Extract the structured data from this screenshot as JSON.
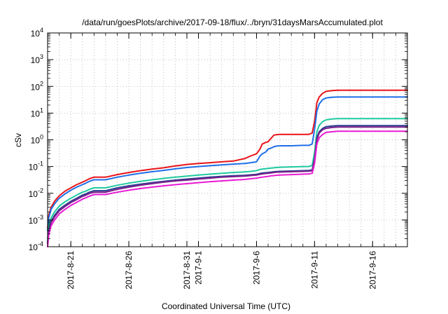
{
  "chart_data": {
    "type": "line",
    "title": "/data/run/goesPlots/archive/2017-09-18/flux/../bryn/31daysMarsAccumulated.plot",
    "xlabel": "Coordinated Universal Time (UTC)",
    "ylabel": "cSv",
    "yscale": "log",
    "ylim": [
      0.0001,
      10000
    ],
    "xlim": [
      0,
      31
    ],
    "grid": true,
    "x_ticks": [
      {
        "x": 2,
        "label": "2017-8-21"
      },
      {
        "x": 7,
        "label": "2017-8-26"
      },
      {
        "x": 12,
        "label": "2017-8-31"
      },
      {
        "x": 13,
        "label": "2017-9-1"
      },
      {
        "x": 18,
        "label": "2017-9-6"
      },
      {
        "x": 23,
        "label": "2017-9-11"
      },
      {
        "x": 28,
        "label": "2017-9-16"
      }
    ],
    "y_ticks": [
      {
        "base": "10",
        "exp": "4",
        "value": 10000
      },
      {
        "base": "10",
        "exp": "3",
        "value": 1000
      },
      {
        "base": "10",
        "exp": "2",
        "value": 100
      },
      {
        "base": "10",
        "exp": "1",
        "value": 10
      },
      {
        "base": "10",
        "exp": "0",
        "value": 1
      },
      {
        "base": "10",
        "exp": "-1",
        "value": 0.1
      },
      {
        "base": "10",
        "exp": "-2",
        "value": 0.01
      },
      {
        "base": "10",
        "exp": "-3",
        "value": 0.001
      },
      {
        "base": "10",
        "exp": "-4",
        "value": 0.0001
      }
    ],
    "series": [
      {
        "color": "#e8141a",
        "x": [
          0,
          0.1,
          0.3,
          0.6,
          1.0,
          1.5,
          2.0,
          2.5,
          3.0,
          3.3,
          3.6,
          4.0,
          4.5,
          5.0,
          6.0,
          7.0,
          8.0,
          9.0,
          10.0,
          11.0,
          12.0,
          13.0,
          14.0,
          15.0,
          16.0,
          17.0,
          17.5,
          18.0,
          18.3,
          18.5,
          18.8,
          19.0,
          19.3,
          19.5,
          19.7,
          20.0,
          21.0,
          22.0,
          22.5,
          22.8,
          23.0,
          23.2,
          23.4,
          23.7,
          24.0,
          24.5,
          25.0,
          26.0,
          27.0,
          28.0,
          29.0,
          30.0,
          31.0
        ],
        "y": [
          0.0005,
          0.0015,
          0.003,
          0.005,
          0.008,
          0.012,
          0.016,
          0.021,
          0.026,
          0.03,
          0.035,
          0.04,
          0.04,
          0.04,
          0.05,
          0.06,
          0.07,
          0.08,
          0.09,
          0.105,
          0.12,
          0.13,
          0.14,
          0.15,
          0.16,
          0.2,
          0.25,
          0.3,
          0.45,
          0.7,
          0.8,
          0.85,
          1.2,
          1.5,
          1.55,
          1.6,
          1.6,
          1.6,
          1.6,
          1.8,
          5,
          25,
          40,
          55,
          65,
          70,
          72,
          72,
          72,
          72,
          72,
          72,
          72
        ]
      },
      {
        "color": "#1f6fe8",
        "x": [
          0,
          0.1,
          0.3,
          0.6,
          1.0,
          1.5,
          2.0,
          2.5,
          3.0,
          3.3,
          3.6,
          4.0,
          4.5,
          5.0,
          6.0,
          7.0,
          8.0,
          9.0,
          10.0,
          11.0,
          12.0,
          13.0,
          14.0,
          15.0,
          16.0,
          17.0,
          17.5,
          18.0,
          18.3,
          18.5,
          18.8,
          19.0,
          19.3,
          19.5,
          19.7,
          20.0,
          21.0,
          22.0,
          22.5,
          22.8,
          23.0,
          23.2,
          23.4,
          23.7,
          24.0,
          24.5,
          25.0,
          26.0,
          27.0,
          28.0,
          29.0,
          30.0,
          31.0
        ],
        "y": [
          0.0004,
          0.0012,
          0.0025,
          0.004,
          0.0065,
          0.0095,
          0.013,
          0.017,
          0.021,
          0.024,
          0.028,
          0.032,
          0.032,
          0.032,
          0.04,
          0.048,
          0.056,
          0.064,
          0.072,
          0.082,
          0.092,
          0.1,
          0.108,
          0.116,
          0.124,
          0.13,
          0.14,
          0.15,
          0.25,
          0.3,
          0.35,
          0.45,
          0.5,
          0.55,
          0.58,
          0.6,
          0.6,
          0.62,
          0.62,
          0.7,
          2.5,
          12,
          22,
          32,
          37,
          39,
          40,
          40,
          40,
          40,
          40,
          40,
          40
        ]
      },
      {
        "color": "#1fc9a0",
        "x": [
          0,
          0.1,
          0.3,
          0.6,
          1.0,
          1.5,
          2.0,
          2.5,
          3.0,
          3.3,
          3.6,
          4.0,
          4.5,
          5.0,
          6.0,
          7.0,
          8.0,
          9.0,
          10.0,
          11.0,
          12.0,
          13.0,
          14.0,
          15.0,
          16.0,
          17.0,
          17.5,
          18.0,
          18.3,
          18.5,
          18.8,
          19.0,
          19.3,
          19.5,
          19.7,
          20.0,
          21.0,
          22.0,
          22.5,
          22.8,
          23.0,
          23.2,
          23.4,
          23.7,
          24.0,
          24.5,
          25.0,
          26.0,
          27.0,
          28.0,
          29.0,
          30.0,
          31.0
        ],
        "y": [
          0.0002,
          0.0006,
          0.0012,
          0.002,
          0.0033,
          0.0048,
          0.0065,
          0.0085,
          0.011,
          0.012,
          0.014,
          0.016,
          0.016,
          0.016,
          0.02,
          0.024,
          0.028,
          0.032,
          0.036,
          0.04,
          0.044,
          0.048,
          0.052,
          0.056,
          0.06,
          0.063,
          0.066,
          0.07,
          0.078,
          0.08,
          0.083,
          0.085,
          0.088,
          0.09,
          0.092,
          0.094,
          0.097,
          0.1,
          0.1,
          0.11,
          0.35,
          2,
          3.5,
          4.8,
          5.6,
          6.0,
          6.2,
          6.2,
          6.2,
          6.2,
          6.2,
          6.2,
          6.2
        ]
      },
      {
        "color": "#2a3f8f",
        "x": [
          0,
          0.1,
          0.3,
          0.6,
          1.0,
          1.5,
          2.0,
          2.5,
          3.0,
          3.3,
          3.6,
          4.0,
          4.5,
          5.0,
          6.0,
          7.0,
          8.0,
          9.0,
          10.0,
          11.0,
          12.0,
          13.0,
          14.0,
          15.0,
          16.0,
          17.0,
          17.5,
          18.0,
          18.3,
          18.5,
          18.8,
          19.0,
          19.3,
          19.5,
          19.7,
          20.0,
          21.0,
          22.0,
          22.5,
          22.8,
          23.0,
          23.2,
          23.4,
          23.7,
          24.0,
          24.5,
          25.0,
          26.0,
          27.0,
          28.0,
          29.0,
          30.0,
          31.0
        ],
        "y": [
          0.00015,
          0.0004,
          0.0009,
          0.0015,
          0.0025,
          0.0036,
          0.005,
          0.0065,
          0.0085,
          0.0095,
          0.011,
          0.0125,
          0.0125,
          0.0125,
          0.016,
          0.019,
          0.022,
          0.025,
          0.028,
          0.031,
          0.034,
          0.037,
          0.04,
          0.043,
          0.045,
          0.047,
          0.049,
          0.051,
          0.055,
          0.057,
          0.059,
          0.06,
          0.062,
          0.064,
          0.065,
          0.066,
          0.068,
          0.07,
          0.071,
          0.075,
          0.2,
          1.2,
          2.0,
          2.7,
          3.1,
          3.3,
          3.4,
          3.4,
          3.4,
          3.4,
          3.4,
          3.4,
          3.4
        ]
      },
      {
        "color": "#7b1f8c",
        "x": [
          0,
          0.1,
          0.3,
          0.6,
          1.0,
          1.5,
          2.0,
          2.5,
          3.0,
          3.3,
          3.6,
          4.0,
          4.5,
          5.0,
          6.0,
          7.0,
          8.0,
          9.0,
          10.0,
          11.0,
          12.0,
          13.0,
          14.0,
          15.0,
          16.0,
          17.0,
          17.5,
          18.0,
          18.3,
          18.5,
          18.8,
          19.0,
          19.3,
          19.5,
          19.7,
          20.0,
          21.0,
          22.0,
          22.5,
          22.8,
          23.0,
          23.2,
          23.4,
          23.7,
          24.0,
          24.5,
          25.0,
          26.0,
          27.0,
          28.0,
          29.0,
          30.0,
          31.0
        ],
        "y": [
          0.00013,
          0.00035,
          0.0008,
          0.0013,
          0.0022,
          0.0032,
          0.0045,
          0.0058,
          0.0076,
          0.0085,
          0.0098,
          0.011,
          0.011,
          0.011,
          0.014,
          0.017,
          0.02,
          0.023,
          0.026,
          0.029,
          0.031,
          0.034,
          0.037,
          0.04,
          0.042,
          0.044,
          0.046,
          0.048,
          0.051,
          0.053,
          0.055,
          0.056,
          0.058,
          0.06,
          0.061,
          0.062,
          0.064,
          0.066,
          0.067,
          0.07,
          0.18,
          1.0,
          1.8,
          2.4,
          2.7,
          2.9,
          3.0,
          3.0,
          3.0,
          3.0,
          3.0,
          3.0,
          3.0
        ]
      },
      {
        "color": "#e81ad4",
        "x": [
          0,
          0.1,
          0.3,
          0.6,
          1.0,
          1.5,
          2.0,
          2.5,
          3.0,
          3.3,
          3.6,
          4.0,
          4.5,
          5.0,
          6.0,
          7.0,
          8.0,
          9.0,
          10.0,
          11.0,
          12.0,
          13.0,
          14.0,
          15.0,
          16.0,
          17.0,
          17.5,
          18.0,
          18.3,
          18.5,
          18.8,
          19.0,
          19.3,
          19.5,
          19.7,
          20.0,
          21.0,
          22.0,
          22.5,
          22.8,
          23.0,
          23.2,
          23.4,
          23.7,
          24.0,
          24.5,
          25.0,
          26.0,
          27.0,
          28.0,
          29.0,
          30.0,
          31.0
        ],
        "y": [
          0.0001,
          0.00028,
          0.0006,
          0.001,
          0.0017,
          0.0025,
          0.0035,
          0.0046,
          0.006,
          0.0068,
          0.0078,
          0.009,
          0.009,
          0.009,
          0.011,
          0.013,
          0.015,
          0.017,
          0.019,
          0.021,
          0.023,
          0.025,
          0.027,
          0.029,
          0.031,
          0.033,
          0.035,
          0.037,
          0.039,
          0.04,
          0.042,
          0.043,
          0.045,
          0.046,
          0.047,
          0.048,
          0.05,
          0.052,
          0.053,
          0.056,
          0.13,
          0.7,
          1.2,
          1.6,
          1.9,
          2.0,
          2.1,
          2.1,
          2.1,
          2.1,
          2.1,
          2.1,
          2.1
        ]
      }
    ]
  }
}
